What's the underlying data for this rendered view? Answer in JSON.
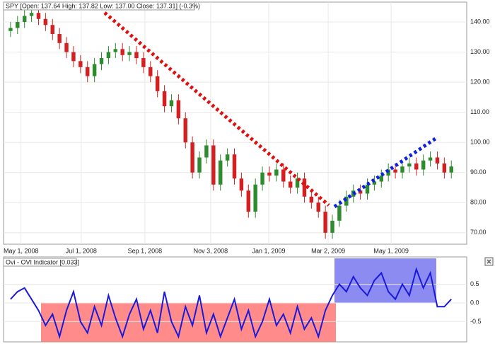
{
  "chart_data": [
    {
      "type": "candlestick",
      "title": "SPY [Open: 137.64  High: 137.82  Low: 137.00  Close: 137.31] (-0.3%)",
      "x": [
        0,
        1,
        2,
        3,
        4,
        5,
        6,
        7,
        8,
        9,
        10,
        11,
        12,
        13,
        14,
        15,
        16,
        17,
        18,
        19,
        20,
        21,
        22,
        23,
        24,
        25,
        26,
        27,
        28,
        29,
        30,
        31,
        32,
        33,
        34,
        35,
        36,
        37,
        38,
        39,
        40,
        41,
        42,
        43,
        44,
        45,
        46,
        47,
        48,
        49,
        50,
        51,
        52,
        53,
        54,
        55,
        56,
        57,
        58,
        59,
        60,
        61,
        62,
        63
      ],
      "open": [
        137,
        138,
        140,
        142,
        143,
        141,
        139,
        136,
        133,
        130,
        127,
        125,
        122,
        126,
        128,
        130,
        131,
        129,
        130,
        128,
        125,
        122,
        117,
        112,
        114,
        108,
        100,
        90,
        95,
        99,
        86,
        94,
        96,
        88,
        84,
        77,
        86,
        90,
        89,
        91,
        87,
        85,
        88,
        82,
        80,
        77,
        70,
        74,
        79,
        82,
        84,
        83,
        86,
        87,
        89,
        91,
        90,
        92,
        93,
        91,
        94,
        95,
        93,
        90
      ],
      "high": [
        140,
        142,
        144,
        145,
        145,
        143,
        141,
        138,
        135,
        132,
        129,
        127,
        128,
        130,
        132,
        133,
        133,
        132,
        132,
        130,
        127,
        124,
        119,
        116,
        116,
        110,
        102,
        97,
        101,
        101,
        96,
        98,
        98,
        90,
        86,
        88,
        92,
        92,
        93,
        93,
        89,
        90,
        90,
        84,
        82,
        79,
        76,
        81,
        84,
        86,
        86,
        88,
        89,
        91,
        93,
        93,
        94,
        95,
        95,
        96,
        97,
        97,
        95,
        94
      ],
      "low": [
        135,
        136,
        138,
        140,
        139,
        137,
        134,
        131,
        128,
        125,
        123,
        120,
        120,
        124,
        126,
        128,
        127,
        127,
        126,
        123,
        120,
        115,
        110,
        110,
        106,
        98,
        88,
        88,
        93,
        84,
        84,
        92,
        86,
        82,
        75,
        75,
        84,
        87,
        87,
        85,
        83,
        83,
        80,
        78,
        75,
        68,
        68,
        72,
        77,
        80,
        81,
        81,
        84,
        85,
        87,
        88,
        88,
        90,
        89,
        89,
        92,
        91,
        88,
        88
      ],
      "close": [
        138,
        140,
        142,
        143,
        141,
        139,
        136,
        133,
        130,
        127,
        125,
        122,
        126,
        128,
        130,
        131,
        129,
        130,
        128,
        125,
        122,
        117,
        112,
        114,
        108,
        100,
        90,
        95,
        99,
        86,
        94,
        96,
        88,
        84,
        77,
        86,
        90,
        89,
        91,
        87,
        85,
        88,
        82,
        80,
        77,
        70,
        74,
        79,
        82,
        84,
        83,
        86,
        87,
        89,
        91,
        90,
        92,
        93,
        91,
        94,
        95,
        93,
        90,
        92
      ],
      "up_color": "#2e8b2e",
      "down_color": "#d42020",
      "xlim": [
        -1,
        65.2
      ],
      "xticks": [
        {
          "value": 1.5,
          "label": "May 1, 2008"
        },
        {
          "value": 10.1,
          "label": "Jul 1, 2008"
        },
        {
          "value": 19.2,
          "label": "Sep 1, 2008"
        },
        {
          "value": 28.6,
          "label": "Nov 3, 2008"
        },
        {
          "value": 36.9,
          "label": "Jan 1, 2009"
        },
        {
          "value": 45.4,
          "label": "Mar 2, 2009"
        },
        {
          "value": 54.4,
          "label": "May 1, 2009"
        }
      ],
      "ylim": [
        66.2,
        144
      ],
      "yticks": [
        {
          "value": 70,
          "label": "70.00"
        },
        {
          "value": 80,
          "label": "80.00"
        },
        {
          "value": 90,
          "label": "90.00"
        },
        {
          "value": 100,
          "label": "100.00"
        },
        {
          "value": 110,
          "label": "110.00"
        },
        {
          "value": 120,
          "label": "120.00"
        },
        {
          "value": 130,
          "label": "130.00"
        },
        {
          "value": 140,
          "label": "140.00"
        }
      ]
    },
    {
      "type": "line",
      "title": "Ovi - OVI Indicator [0.033]",
      "x": [
        0,
        1,
        2,
        3,
        4,
        5,
        6,
        7,
        8,
        9,
        10,
        11,
        12,
        13,
        14,
        15,
        16,
        17,
        18,
        19,
        20,
        21,
        22,
        23,
        24,
        25,
        26,
        27,
        28,
        29,
        30,
        31,
        32,
        33,
        34,
        35,
        36,
        37,
        38,
        39,
        40,
        41,
        42,
        43,
        44,
        45,
        46,
        47,
        48,
        49,
        50,
        51,
        52,
        53,
        54,
        55,
        56,
        57,
        58,
        59,
        60,
        61,
        62,
        63
      ],
      "values": [
        0.1,
        0.3,
        0.4,
        0.1,
        -0.2,
        -0.6,
        -0.3,
        -0.9,
        -0.2,
        0.3,
        -0.5,
        -0.8,
        -0.1,
        -0.6,
        0.2,
        -0.4,
        -0.9,
        -0.3,
        0.1,
        -0.7,
        -0.2,
        -0.8,
        0.3,
        -0.5,
        -0.9,
        -0.1,
        -0.6,
        0.2,
        -0.8,
        -0.3,
        -0.9,
        -0.4,
        0.1,
        -0.7,
        -0.2,
        -0.9,
        -0.5,
        0.1,
        -0.6,
        -0.3,
        -0.8,
        -0.1,
        -0.7,
        -0.4,
        -0.9,
        -0.2,
        0.2,
        0.5,
        0.3,
        0.7,
        0.4,
        0.2,
        0.6,
        0.8,
        0.3,
        0.1,
        0.5,
        0.2,
        0.9,
        0.4,
        0.8,
        -0.1,
        -0.1,
        0.1
      ],
      "color": "#1a1adb",
      "xlim": [
        -1,
        65.2
      ],
      "ylim": [
        -1.04,
        1.19
      ],
      "yticks": [
        -0.5,
        {
          "value": 0,
          "label": "0.0"
        },
        0.5
      ]
    }
  ]
}
